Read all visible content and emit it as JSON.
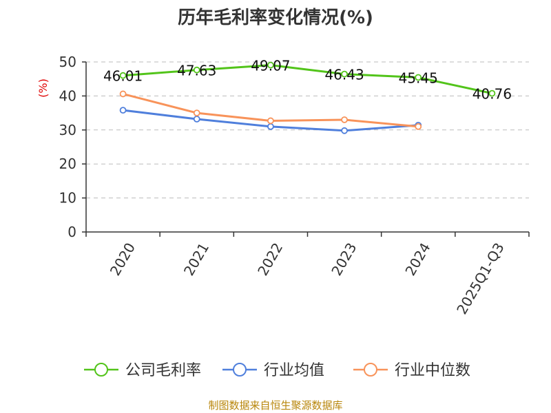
{
  "chart_data": {
    "type": "line",
    "title": "历年毛利率变化情况(%)",
    "ylabel": "(%)",
    "xlabel": "",
    "categories": [
      "2020",
      "2021",
      "2022",
      "2023",
      "2024",
      "2025Q1-Q3"
    ],
    "ylim": [
      0,
      50
    ],
    "yticks": [
      0,
      10,
      20,
      30,
      40,
      50
    ],
    "grid": true,
    "legend_position": "bottom",
    "series": [
      {
        "name": "公司毛利率",
        "color": "#52c41a",
        "values": [
          46.01,
          47.63,
          49.07,
          46.43,
          45.45,
          40.76
        ],
        "labels": [
          "46.01",
          "47.63",
          "49.07",
          "46.43",
          "45.45",
          "40.76"
        ]
      },
      {
        "name": "行业均值",
        "color": "#4f7fdc",
        "values": [
          35.8,
          33.2,
          31.0,
          29.8,
          31.4,
          null
        ]
      },
      {
        "name": "行业中位数",
        "color": "#f8935a",
        "values": [
          40.6,
          35.0,
          32.7,
          33.0,
          31.0,
          null
        ]
      }
    ],
    "source": "制图数据来自恒生聚源数据库"
  }
}
